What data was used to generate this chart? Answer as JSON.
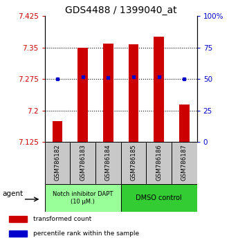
{
  "title": "GDS4488 / 1399040_at",
  "samples": [
    "GSM786182",
    "GSM786183",
    "GSM786184",
    "GSM786185",
    "GSM786186",
    "GSM786187"
  ],
  "bar_values": [
    7.175,
    7.35,
    7.36,
    7.358,
    7.375,
    7.215
  ],
  "percentile_values": [
    50,
    52,
    51,
    52,
    52,
    50
  ],
  "bar_base": 7.125,
  "ylim_left": [
    7.125,
    7.425
  ],
  "ylim_right": [
    0,
    100
  ],
  "yticks_left": [
    7.125,
    7.2,
    7.275,
    7.35,
    7.425
  ],
  "yticks_right": [
    0,
    25,
    50,
    75,
    100
  ],
  "ytick_labels_left": [
    "7.125",
    "7.2",
    "7.275",
    "7.35",
    "7.425"
  ],
  "ytick_labels_right": [
    "0",
    "25",
    "50",
    "75",
    "100%"
  ],
  "bar_color": "#cc0000",
  "dot_color": "#0000cc",
  "groups": [
    {
      "label": "Notch inhibitor DAPT\n(10 μM.)",
      "color": "#99ff99",
      "span": [
        0,
        3
      ]
    },
    {
      "label": "DMSO control",
      "color": "#33cc33",
      "span": [
        3,
        6
      ]
    }
  ],
  "agent_label": "agent",
  "legend_items": [
    {
      "color": "#cc0000",
      "label": "transformed count"
    },
    {
      "color": "#0000cc",
      "label": "percentile rank within the sample"
    }
  ],
  "sample_box_color": "#c8c8c8",
  "title_fontsize": 10,
  "tick_fontsize": 7.5,
  "bar_width": 0.4
}
